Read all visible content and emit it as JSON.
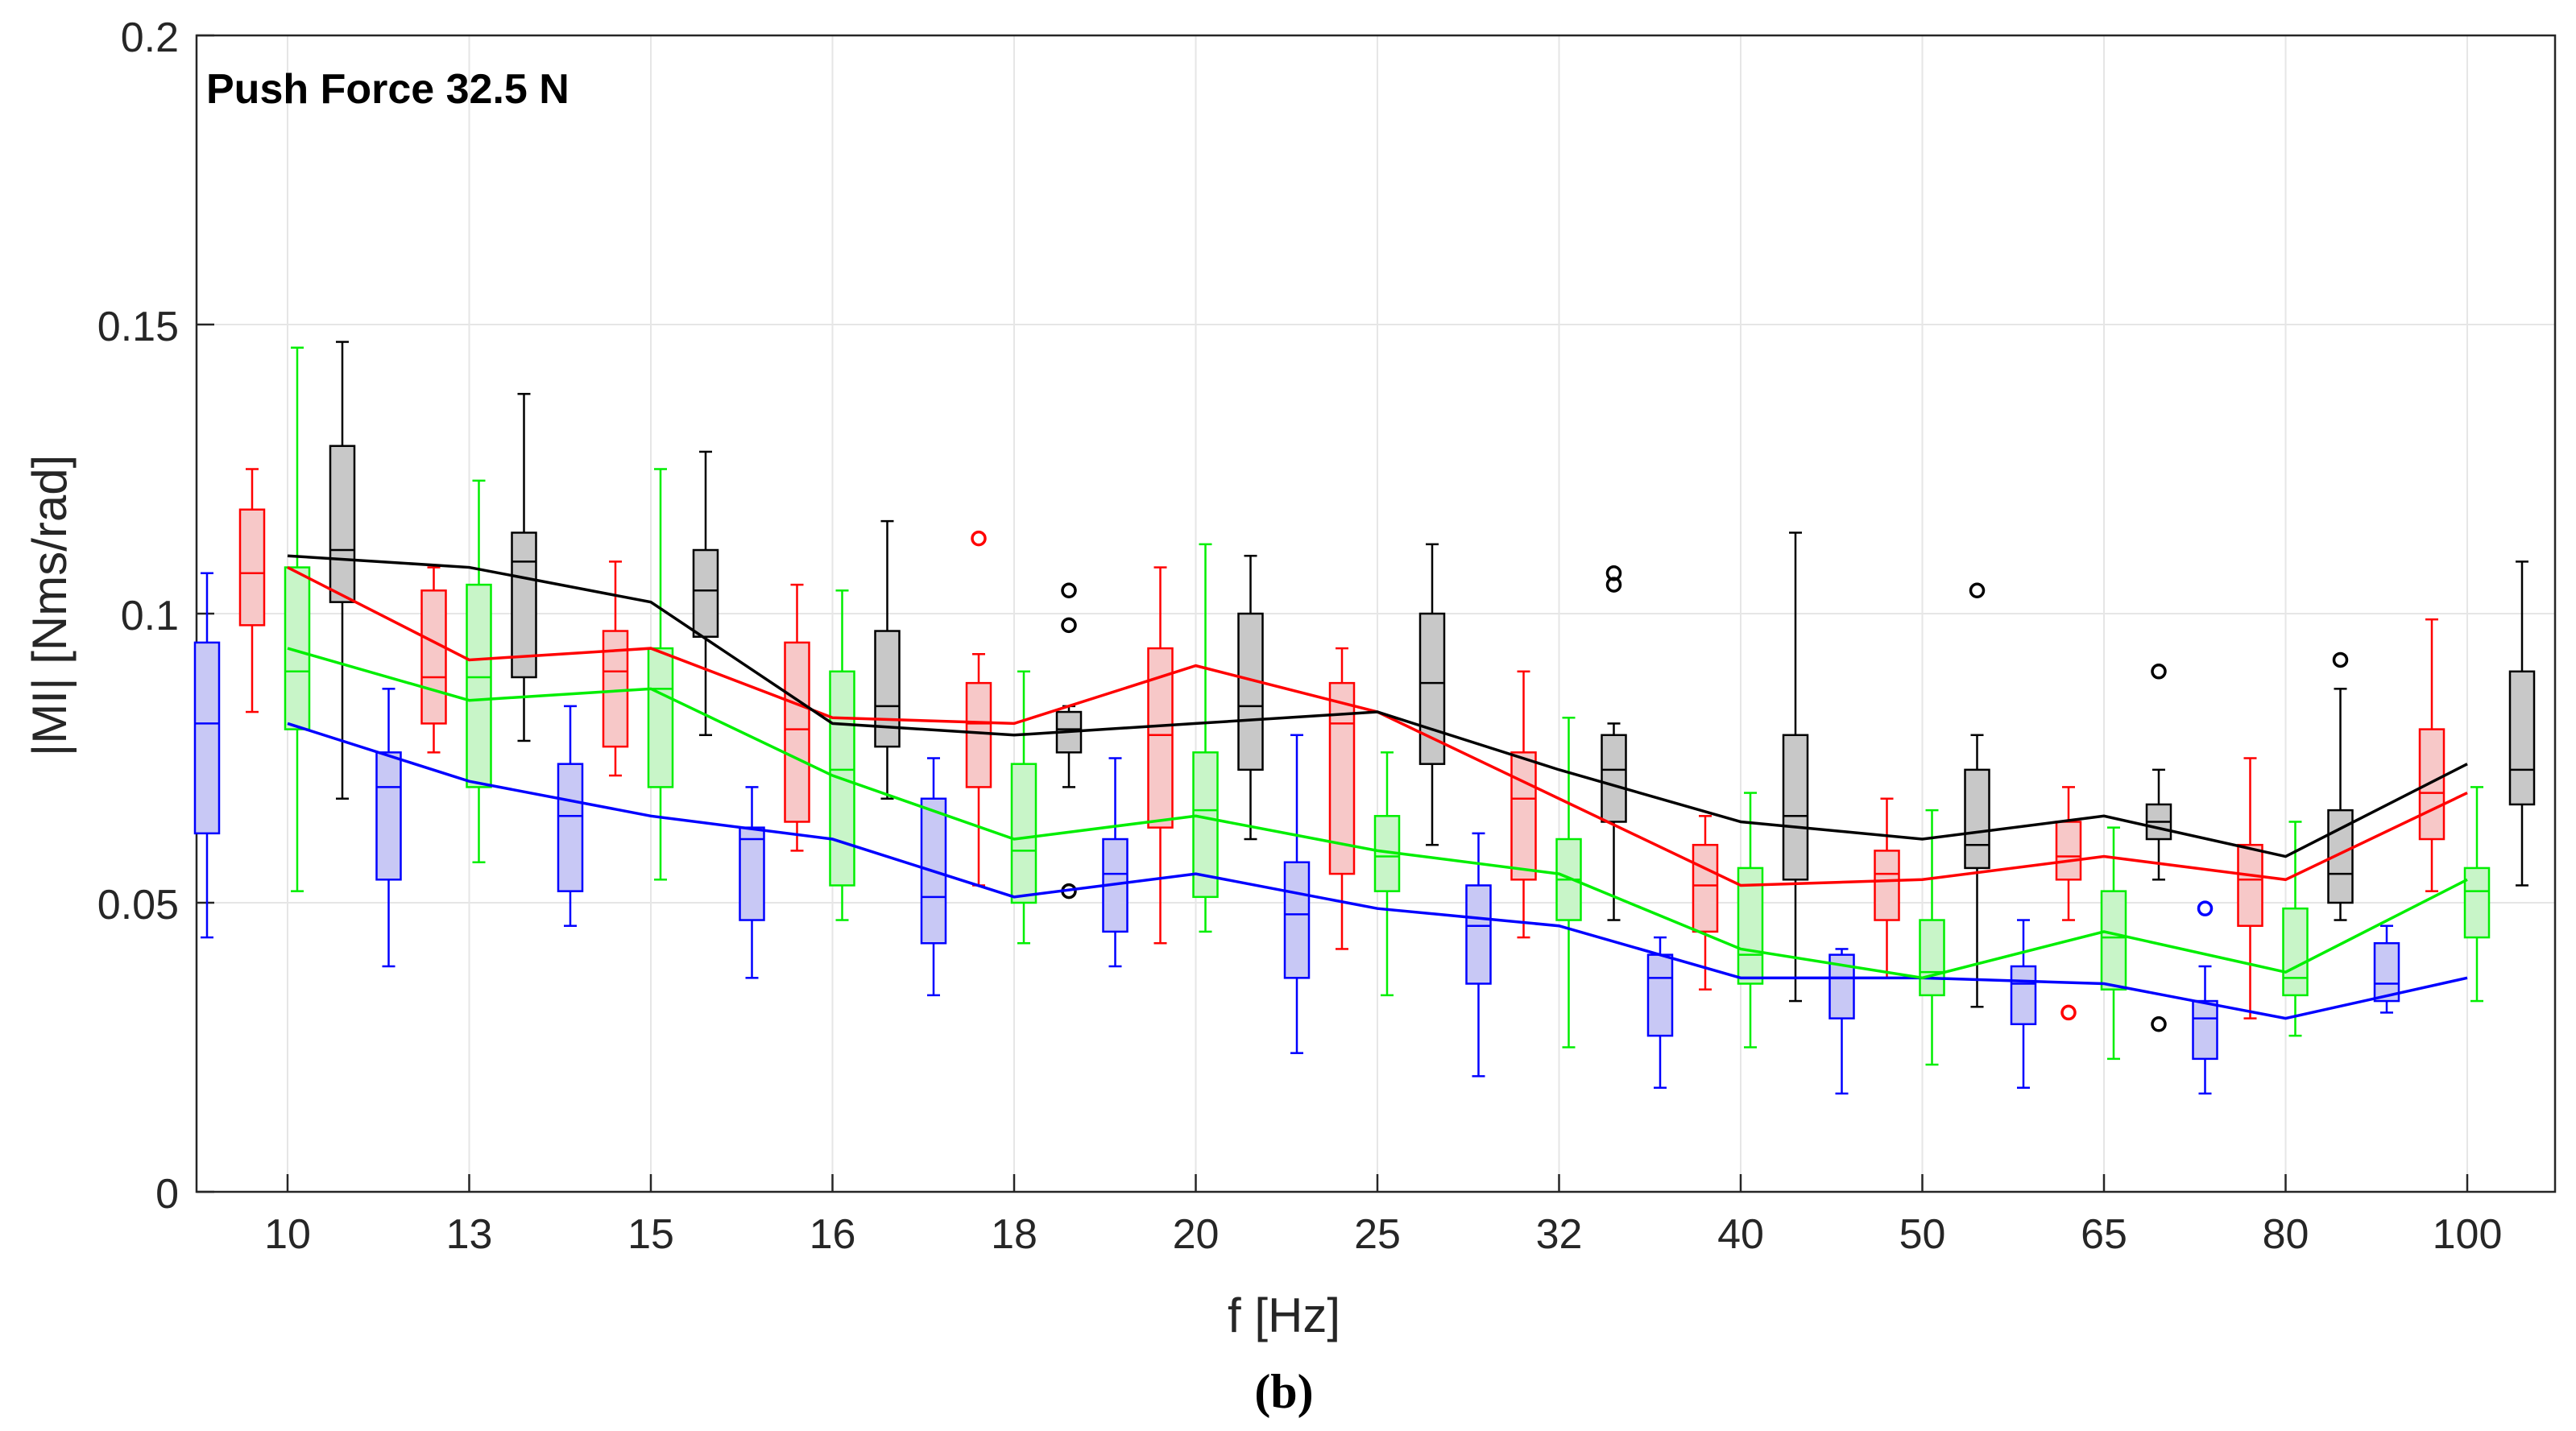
{
  "chart_data": {
    "type": "box",
    "title": "Push Force 32.5 N",
    "caption": "(b)",
    "xlabel": "f [Hz]",
    "ylabel": "|MI| [Nms/rad]",
    "ylim": [
      0,
      0.2
    ],
    "y_ticks": [
      0,
      0.05,
      0.1,
      0.15,
      0.2
    ],
    "y_tick_labels": [
      "0",
      "0.05",
      "0.1",
      "0.15",
      "0.2"
    ],
    "grid": true,
    "categories": [
      "10",
      "13",
      "15",
      "16",
      "18",
      "20",
      "25",
      "32",
      "40",
      "50",
      "65",
      "80",
      "100"
    ],
    "series": [
      {
        "name": "blue",
        "color": "#0000ff",
        "fill": "#c8c8f5",
        "boxes": [
          {
            "whislo": 0.044,
            "q1": 0.062,
            "med": 0.081,
            "q3": 0.095,
            "whishi": 0.107,
            "fliers": []
          },
          {
            "whislo": 0.039,
            "q1": 0.054,
            "med": 0.07,
            "q3": 0.076,
            "whishi": 0.087,
            "fliers": []
          },
          {
            "whislo": 0.046,
            "q1": 0.052,
            "med": 0.065,
            "q3": 0.074,
            "whishi": 0.084,
            "fliers": []
          },
          {
            "whislo": 0.037,
            "q1": 0.047,
            "med": 0.061,
            "q3": 0.063,
            "whishi": 0.07,
            "fliers": []
          },
          {
            "whislo": 0.034,
            "q1": 0.043,
            "med": 0.051,
            "q3": 0.068,
            "whishi": 0.075,
            "fliers": []
          },
          {
            "whislo": 0.039,
            "q1": 0.045,
            "med": 0.055,
            "q3": 0.061,
            "whishi": 0.075,
            "fliers": []
          },
          {
            "whislo": 0.024,
            "q1": 0.037,
            "med": 0.048,
            "q3": 0.057,
            "whishi": 0.079,
            "fliers": []
          },
          {
            "whislo": 0.02,
            "q1": 0.036,
            "med": 0.046,
            "q3": 0.053,
            "whishi": 0.062,
            "fliers": []
          },
          {
            "whislo": 0.018,
            "q1": 0.027,
            "med": 0.037,
            "q3": 0.041,
            "whishi": 0.044,
            "fliers": []
          },
          {
            "whislo": 0.017,
            "q1": 0.03,
            "med": 0.037,
            "q3": 0.041,
            "whishi": 0.042,
            "fliers": []
          },
          {
            "whislo": 0.018,
            "q1": 0.029,
            "med": 0.036,
            "q3": 0.039,
            "whishi": 0.047,
            "fliers": []
          },
          {
            "whislo": 0.017,
            "q1": 0.023,
            "med": 0.03,
            "q3": 0.033,
            "whishi": 0.039,
            "fliers": [
              0.049
            ]
          },
          {
            "whislo": 0.031,
            "q1": 0.033,
            "med": 0.036,
            "q3": 0.043,
            "whishi": 0.046,
            "fliers": []
          }
        ],
        "mean_line": [
          0.081,
          0.071,
          0.065,
          0.061,
          0.051,
          0.055,
          0.049,
          0.046,
          0.037,
          0.037,
          0.036,
          0.03,
          0.037
        ]
      },
      {
        "name": "red",
        "color": "#ff0000",
        "fill": "#f7c8c8",
        "boxes": [
          {
            "whislo": 0.083,
            "q1": 0.098,
            "med": 0.107,
            "q3": 0.118,
            "whishi": 0.125,
            "fliers": []
          },
          {
            "whislo": 0.076,
            "q1": 0.081,
            "med": 0.089,
            "q3": 0.104,
            "whishi": 0.108,
            "fliers": []
          },
          {
            "whislo": 0.072,
            "q1": 0.077,
            "med": 0.09,
            "q3": 0.097,
            "whishi": 0.109,
            "fliers": []
          },
          {
            "whislo": 0.059,
            "q1": 0.064,
            "med": 0.08,
            "q3": 0.095,
            "whishi": 0.105,
            "fliers": []
          },
          {
            "whislo": 0.053,
            "q1": 0.07,
            "med": 0.081,
            "q3": 0.088,
            "whishi": 0.093,
            "fliers": [
              0.113
            ]
          },
          {
            "whislo": 0.043,
            "q1": 0.063,
            "med": 0.079,
            "q3": 0.094,
            "whishi": 0.108,
            "fliers": []
          },
          {
            "whislo": 0.042,
            "q1": 0.055,
            "med": 0.081,
            "q3": 0.088,
            "whishi": 0.094,
            "fliers": []
          },
          {
            "whislo": 0.044,
            "q1": 0.054,
            "med": 0.068,
            "q3": 0.076,
            "whishi": 0.09,
            "fliers": []
          },
          {
            "whislo": 0.035,
            "q1": 0.045,
            "med": 0.053,
            "q3": 0.06,
            "whishi": 0.065,
            "fliers": []
          },
          {
            "whislo": 0.037,
            "q1": 0.047,
            "med": 0.055,
            "q3": 0.059,
            "whishi": 0.068,
            "fliers": []
          },
          {
            "whislo": 0.047,
            "q1": 0.054,
            "med": 0.058,
            "q3": 0.064,
            "whishi": 0.07,
            "fliers": [
              0.031
            ]
          },
          {
            "whislo": 0.03,
            "q1": 0.046,
            "med": 0.054,
            "q3": 0.06,
            "whishi": 0.075,
            "fliers": []
          },
          {
            "whislo": 0.052,
            "q1": 0.061,
            "med": 0.069,
            "q3": 0.08,
            "whishi": 0.099,
            "fliers": []
          }
        ],
        "mean_line": [
          0.108,
          0.092,
          0.094,
          0.082,
          0.081,
          0.091,
          0.083,
          0.068,
          0.053,
          0.054,
          0.058,
          0.054,
          0.069
        ]
      },
      {
        "name": "green",
        "color": "#00ee00",
        "fill": "#c8f5c8",
        "boxes": [
          {
            "whislo": 0.052,
            "q1": 0.08,
            "med": 0.09,
            "q3": 0.108,
            "whishi": 0.146,
            "fliers": []
          },
          {
            "whislo": 0.057,
            "q1": 0.07,
            "med": 0.089,
            "q3": 0.105,
            "whishi": 0.123,
            "fliers": []
          },
          {
            "whislo": 0.054,
            "q1": 0.07,
            "med": 0.087,
            "q3": 0.094,
            "whishi": 0.125,
            "fliers": []
          },
          {
            "whislo": 0.047,
            "q1": 0.053,
            "med": 0.073,
            "q3": 0.09,
            "whishi": 0.104,
            "fliers": []
          },
          {
            "whislo": 0.043,
            "q1": 0.05,
            "med": 0.059,
            "q3": 0.074,
            "whishi": 0.09,
            "fliers": []
          },
          {
            "whislo": 0.045,
            "q1": 0.051,
            "med": 0.066,
            "q3": 0.076,
            "whishi": 0.112,
            "fliers": []
          },
          {
            "whislo": 0.034,
            "q1": 0.052,
            "med": 0.058,
            "q3": 0.065,
            "whishi": 0.076,
            "fliers": []
          },
          {
            "whislo": 0.025,
            "q1": 0.047,
            "med": 0.054,
            "q3": 0.061,
            "whishi": 0.082,
            "fliers": []
          },
          {
            "whislo": 0.025,
            "q1": 0.036,
            "med": 0.041,
            "q3": 0.056,
            "whishi": 0.069,
            "fliers": []
          },
          {
            "whislo": 0.022,
            "q1": 0.034,
            "med": 0.038,
            "q3": 0.047,
            "whishi": 0.066,
            "fliers": []
          },
          {
            "whislo": 0.023,
            "q1": 0.035,
            "med": 0.044,
            "q3": 0.052,
            "whishi": 0.063,
            "fliers": []
          },
          {
            "whislo": 0.027,
            "q1": 0.034,
            "med": 0.037,
            "q3": 0.049,
            "whishi": 0.064,
            "fliers": []
          },
          {
            "whislo": 0.033,
            "q1": 0.044,
            "med": 0.052,
            "q3": 0.056,
            "whishi": 0.07,
            "fliers": []
          }
        ],
        "mean_line": [
          0.094,
          0.085,
          0.087,
          0.072,
          0.061,
          0.065,
          0.059,
          0.055,
          0.042,
          0.037,
          0.045,
          0.038,
          0.054
        ]
      },
      {
        "name": "black",
        "color": "#000000",
        "fill": "#c8c8c8",
        "boxes": [
          {
            "whislo": 0.068,
            "q1": 0.102,
            "med": 0.111,
            "q3": 0.129,
            "whishi": 0.147,
            "fliers": []
          },
          {
            "whislo": 0.078,
            "q1": 0.089,
            "med": 0.109,
            "q3": 0.114,
            "whishi": 0.138,
            "fliers": []
          },
          {
            "whislo": 0.079,
            "q1": 0.096,
            "med": 0.104,
            "q3": 0.111,
            "whishi": 0.128,
            "fliers": []
          },
          {
            "whislo": 0.068,
            "q1": 0.077,
            "med": 0.084,
            "q3": 0.097,
            "whishi": 0.116,
            "fliers": []
          },
          {
            "whislo": 0.07,
            "q1": 0.076,
            "med": 0.08,
            "q3": 0.083,
            "whishi": 0.084,
            "fliers": [
              0.104,
              0.098,
              0.052
            ]
          },
          {
            "whislo": 0.061,
            "q1": 0.073,
            "med": 0.084,
            "q3": 0.1,
            "whishi": 0.11,
            "fliers": []
          },
          {
            "whislo": 0.06,
            "q1": 0.074,
            "med": 0.088,
            "q3": 0.1,
            "whishi": 0.112,
            "fliers": []
          },
          {
            "whislo": 0.047,
            "q1": 0.064,
            "med": 0.073,
            "q3": 0.079,
            "whishi": 0.081,
            "fliers": [
              0.107,
              0.105
            ]
          },
          {
            "whislo": 0.033,
            "q1": 0.054,
            "med": 0.065,
            "q3": 0.079,
            "whishi": 0.114,
            "fliers": []
          },
          {
            "whislo": 0.032,
            "q1": 0.056,
            "med": 0.06,
            "q3": 0.073,
            "whishi": 0.079,
            "fliers": [
              0.104
            ]
          },
          {
            "whislo": 0.054,
            "q1": 0.061,
            "med": 0.064,
            "q3": 0.067,
            "whishi": 0.073,
            "fliers": [
              0.09,
              0.029
            ]
          },
          {
            "whislo": 0.047,
            "q1": 0.05,
            "med": 0.055,
            "q3": 0.066,
            "whishi": 0.087,
            "fliers": [
              0.092
            ]
          },
          {
            "whislo": 0.053,
            "q1": 0.067,
            "med": 0.073,
            "q3": 0.09,
            "whishi": 0.109,
            "fliers": []
          }
        ],
        "mean_line": [
          0.11,
          0.108,
          0.102,
          0.081,
          0.079,
          0.081,
          0.083,
          0.073,
          0.064,
          0.061,
          0.065,
          0.058,
          0.074
        ]
      }
    ]
  }
}
